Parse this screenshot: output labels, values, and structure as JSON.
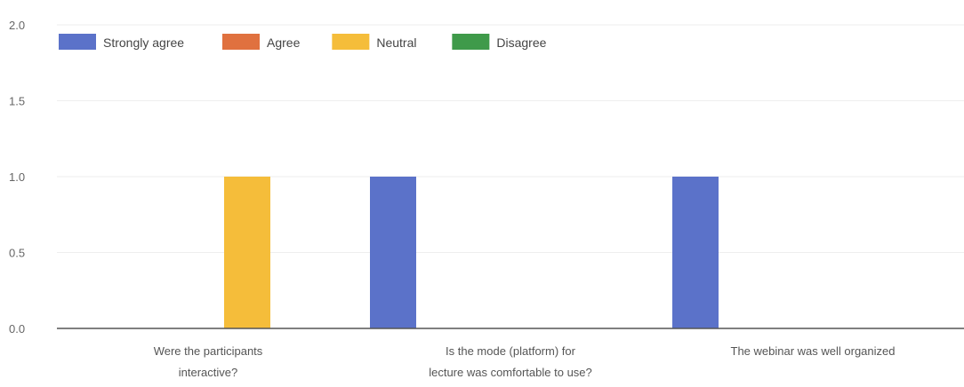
{
  "chart_data": {
    "type": "bar",
    "title": "",
    "xlabel": "",
    "ylabel": "",
    "ylim": [
      0,
      2.0
    ],
    "yticks": [
      "0.0",
      "0.5",
      "1.0",
      "1.5",
      "2.0"
    ],
    "grid": true,
    "legend_position": "top-left",
    "categories": [
      [
        "Were the participants",
        "interactive?"
      ],
      [
        "Is the mode (platform) for",
        "lecture was comfortable to use?"
      ],
      [
        "The webinar was well organized"
      ]
    ],
    "series": [
      {
        "name": "Strongly agree",
        "color": "#5b72c9",
        "values": [
          0,
          1,
          1
        ]
      },
      {
        "name": "Agree",
        "color": "#e0713f",
        "values": [
          0,
          0,
          0
        ]
      },
      {
        "name": "Neutral",
        "color": "#f5bd3a",
        "values": [
          1,
          0,
          0
        ]
      },
      {
        "name": "Disagree",
        "color": "#3f9a4a",
        "values": [
          0,
          0,
          0
        ]
      }
    ]
  }
}
